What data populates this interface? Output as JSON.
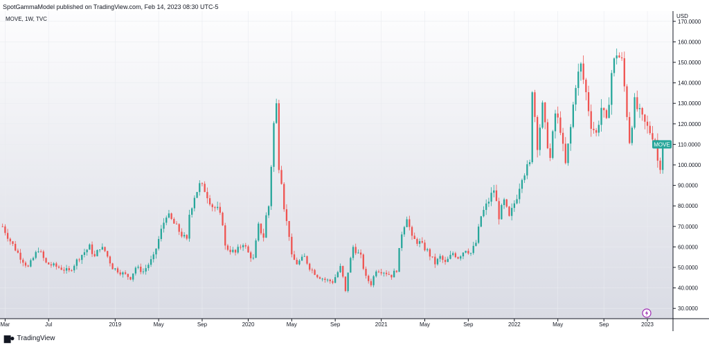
{
  "header": {
    "published": "SpotGammaModel published on TradingView.com, Feb 14, 2023 08:30 UTC-5"
  },
  "footer": {
    "brand": "TradingView"
  },
  "colors": {
    "up": "#26a69a",
    "down": "#ef5350",
    "axis": "#131722",
    "plot_top": "#fdfdfe",
    "plot_bottom": "#d9dbe4",
    "grid": "#e9ebf0"
  },
  "icons": {
    "footer_logo": "tradingview-logo-icon",
    "badge": "lightning-icon"
  },
  "chart_data": {
    "type": "candlestick",
    "symbol_legend": "MOVE, 1W, TVC",
    "currency_label": "USD",
    "last_price_label": "MOVE",
    "last_value": 110,
    "ylim": [
      25,
      175
    ],
    "y_ticks": [
      "30.0000",
      "40.0000",
      "50.0000",
      "60.0000",
      "70.0000",
      "80.0000",
      "90.0000",
      "100.0000",
      "110.0000",
      "120.0000",
      "130.0000",
      "140.0000",
      "150.0000",
      "160.0000",
      "170.0000"
    ],
    "x_ticks": [
      {
        "label": "Mar",
        "week": 1
      },
      {
        "label": "Jul",
        "week": 18
      },
      {
        "label": "2019",
        "week": 44
      },
      {
        "label": "May",
        "week": 61
      },
      {
        "label": "Sep",
        "week": 78
      },
      {
        "label": "2020",
        "week": 96
      },
      {
        "label": "May",
        "week": 113
      },
      {
        "label": "Sep",
        "week": 130
      },
      {
        "label": "2021",
        "week": 148
      },
      {
        "label": "May",
        "week": 165
      },
      {
        "label": "Sep",
        "week": 182
      },
      {
        "label": "2022",
        "week": 200
      },
      {
        "label": "May",
        "week": 217
      },
      {
        "label": "Sep",
        "week": 235
      },
      {
        "label": "2023",
        "week": 252
      }
    ],
    "week_range": [
      -1,
      262
    ],
    "anchors": [
      [
        0,
        70
      ],
      [
        3,
        63
      ],
      [
        7,
        55
      ],
      [
        10,
        50
      ],
      [
        14,
        59
      ],
      [
        17,
        52
      ],
      [
        22,
        50
      ],
      [
        26,
        48
      ],
      [
        30,
        55
      ],
      [
        34,
        60
      ],
      [
        36,
        55
      ],
      [
        38,
        60
      ],
      [
        40,
        58
      ],
      [
        43,
        50
      ],
      [
        47,
        47
      ],
      [
        50,
        45
      ],
      [
        52,
        50
      ],
      [
        55,
        48
      ],
      [
        59,
        55
      ],
      [
        62,
        68
      ],
      [
        64,
        76
      ],
      [
        66,
        73
      ],
      [
        70,
        66
      ],
      [
        72,
        63
      ],
      [
        73,
        76
      ],
      [
        75,
        85
      ],
      [
        77,
        90
      ],
      [
        79,
        88
      ],
      [
        82,
        80
      ],
      [
        84,
        78
      ],
      [
        86,
        72
      ],
      [
        87,
        60
      ],
      [
        91,
        57
      ],
      [
        94,
        62
      ],
      [
        96,
        57
      ],
      [
        98,
        54
      ],
      [
        100,
        70
      ],
      [
        102,
        65
      ],
      [
        103,
        75
      ],
      [
        104,
        80
      ],
      [
        105,
        100
      ],
      [
        106,
        120
      ],
      [
        107,
        129
      ],
      [
        108,
        100
      ],
      [
        109,
        93
      ],
      [
        110,
        80
      ],
      [
        111,
        72
      ],
      [
        112,
        66
      ],
      [
        113,
        55
      ],
      [
        115,
        52
      ],
      [
        118,
        55
      ],
      [
        120,
        50
      ],
      [
        123,
        46
      ],
      [
        126,
        44
      ],
      [
        129,
        43
      ],
      [
        132,
        50
      ],
      [
        133,
        45
      ],
      [
        134,
        38
      ],
      [
        135,
        48
      ],
      [
        137,
        60
      ],
      [
        140,
        55
      ],
      [
        142,
        45
      ],
      [
        144,
        42
      ],
      [
        146,
        49
      ],
      [
        149,
        48
      ],
      [
        152,
        46
      ],
      [
        154,
        49
      ],
      [
        156,
        67
      ],
      [
        158,
        75
      ],
      [
        160,
        64
      ],
      [
        163,
        62
      ],
      [
        166,
        58
      ],
      [
        169,
        52
      ],
      [
        171,
        55
      ],
      [
        173,
        52
      ],
      [
        176,
        57
      ],
      [
        178,
        55
      ],
      [
        181,
        59
      ],
      [
        183,
        57
      ],
      [
        185,
        62
      ],
      [
        187,
        75
      ],
      [
        189,
        80
      ],
      [
        192,
        88
      ],
      [
        194,
        75
      ],
      [
        196,
        82
      ],
      [
        198,
        74
      ],
      [
        201,
        85
      ],
      [
        203,
        95
      ],
      [
        206,
        100
      ],
      [
        207,
        138
      ],
      [
        209,
        110
      ],
      [
        211,
        128
      ],
      [
        212,
        118
      ],
      [
        214,
        103
      ],
      [
        216,
        125
      ],
      [
        218,
        118
      ],
      [
        219,
        108
      ],
      [
        220,
        100
      ],
      [
        222,
        118
      ],
      [
        224,
        140
      ],
      [
        226,
        148
      ],
      [
        228,
        135
      ],
      [
        230,
        120
      ],
      [
        232,
        115
      ],
      [
        234,
        128
      ],
      [
        236,
        120
      ],
      [
        238,
        145
      ],
      [
        240,
        155
      ],
      [
        242,
        150
      ],
      [
        243,
        138
      ],
      [
        245,
        112
      ],
      [
        247,
        130
      ],
      [
        250,
        122
      ],
      [
        252,
        118
      ],
      [
        255,
        113
      ],
      [
        256,
        102
      ],
      [
        257,
        100
      ],
      [
        258,
        110
      ]
    ]
  }
}
